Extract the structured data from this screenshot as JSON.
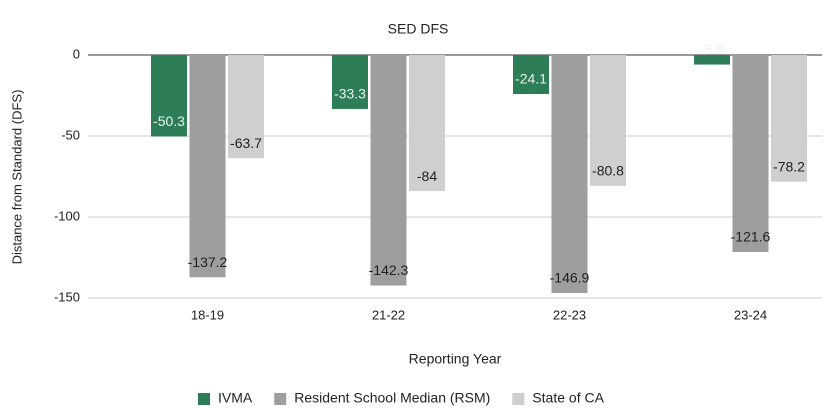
{
  "chart_data": {
    "type": "bar",
    "title": "SED DFS",
    "x_label": "Reporting Year",
    "y_label": "Distance from Standard (DFS)",
    "categories": [
      "18-19",
      "21-22",
      "22-23",
      "23-24"
    ],
    "series": [
      {
        "name": "IVMA",
        "color": "#2d7d57",
        "values": [
          -50.3,
          -33.3,
          -24.1,
          -5.9
        ]
      },
      {
        "name": "Resident School Median (RSM)",
        "color": "#9e9e9e",
        "values": [
          -137.2,
          -142.3,
          -146.9,
          -121.6
        ]
      },
      {
        "name": "State of CA",
        "color": "#cfcfcf",
        "values": [
          -63.7,
          -84,
          -80.8,
          -78.2
        ]
      }
    ],
    "ylim": [
      -150,
      0
    ],
    "yticks": [
      0,
      -50,
      -100,
      -150
    ],
    "grid": true,
    "legend": "bottom"
  }
}
